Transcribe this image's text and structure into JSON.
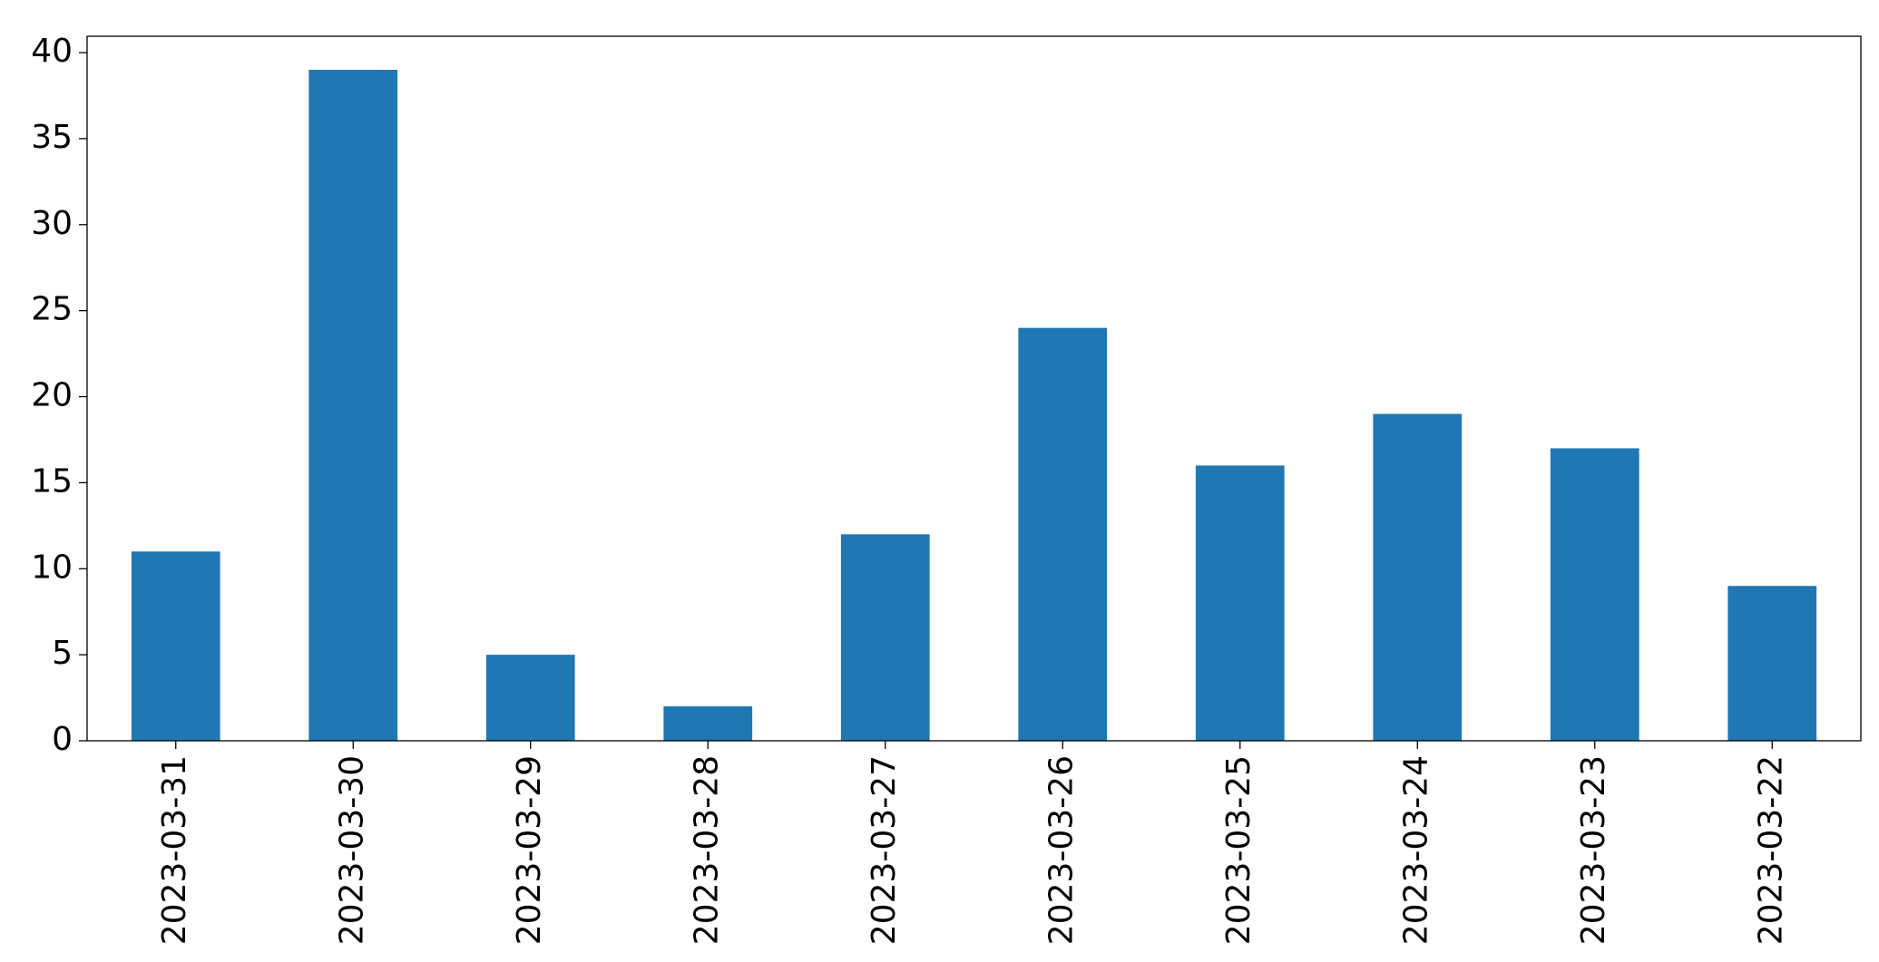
{
  "chart_data": {
    "type": "bar",
    "categories": [
      "2023-03-31",
      "2023-03-30",
      "2023-03-29",
      "2023-03-28",
      "2023-03-27",
      "2023-03-26",
      "2023-03-25",
      "2023-03-24",
      "2023-03-23",
      "2023-03-22"
    ],
    "values": [
      11,
      39,
      5,
      2,
      12,
      24,
      16,
      19,
      17,
      9
    ],
    "color": "#1f77b4",
    "ylim": [
      0,
      40.95
    ],
    "yticks": [
      0,
      5,
      10,
      15,
      20,
      25,
      30,
      35,
      40
    ],
    "grid": false
  }
}
